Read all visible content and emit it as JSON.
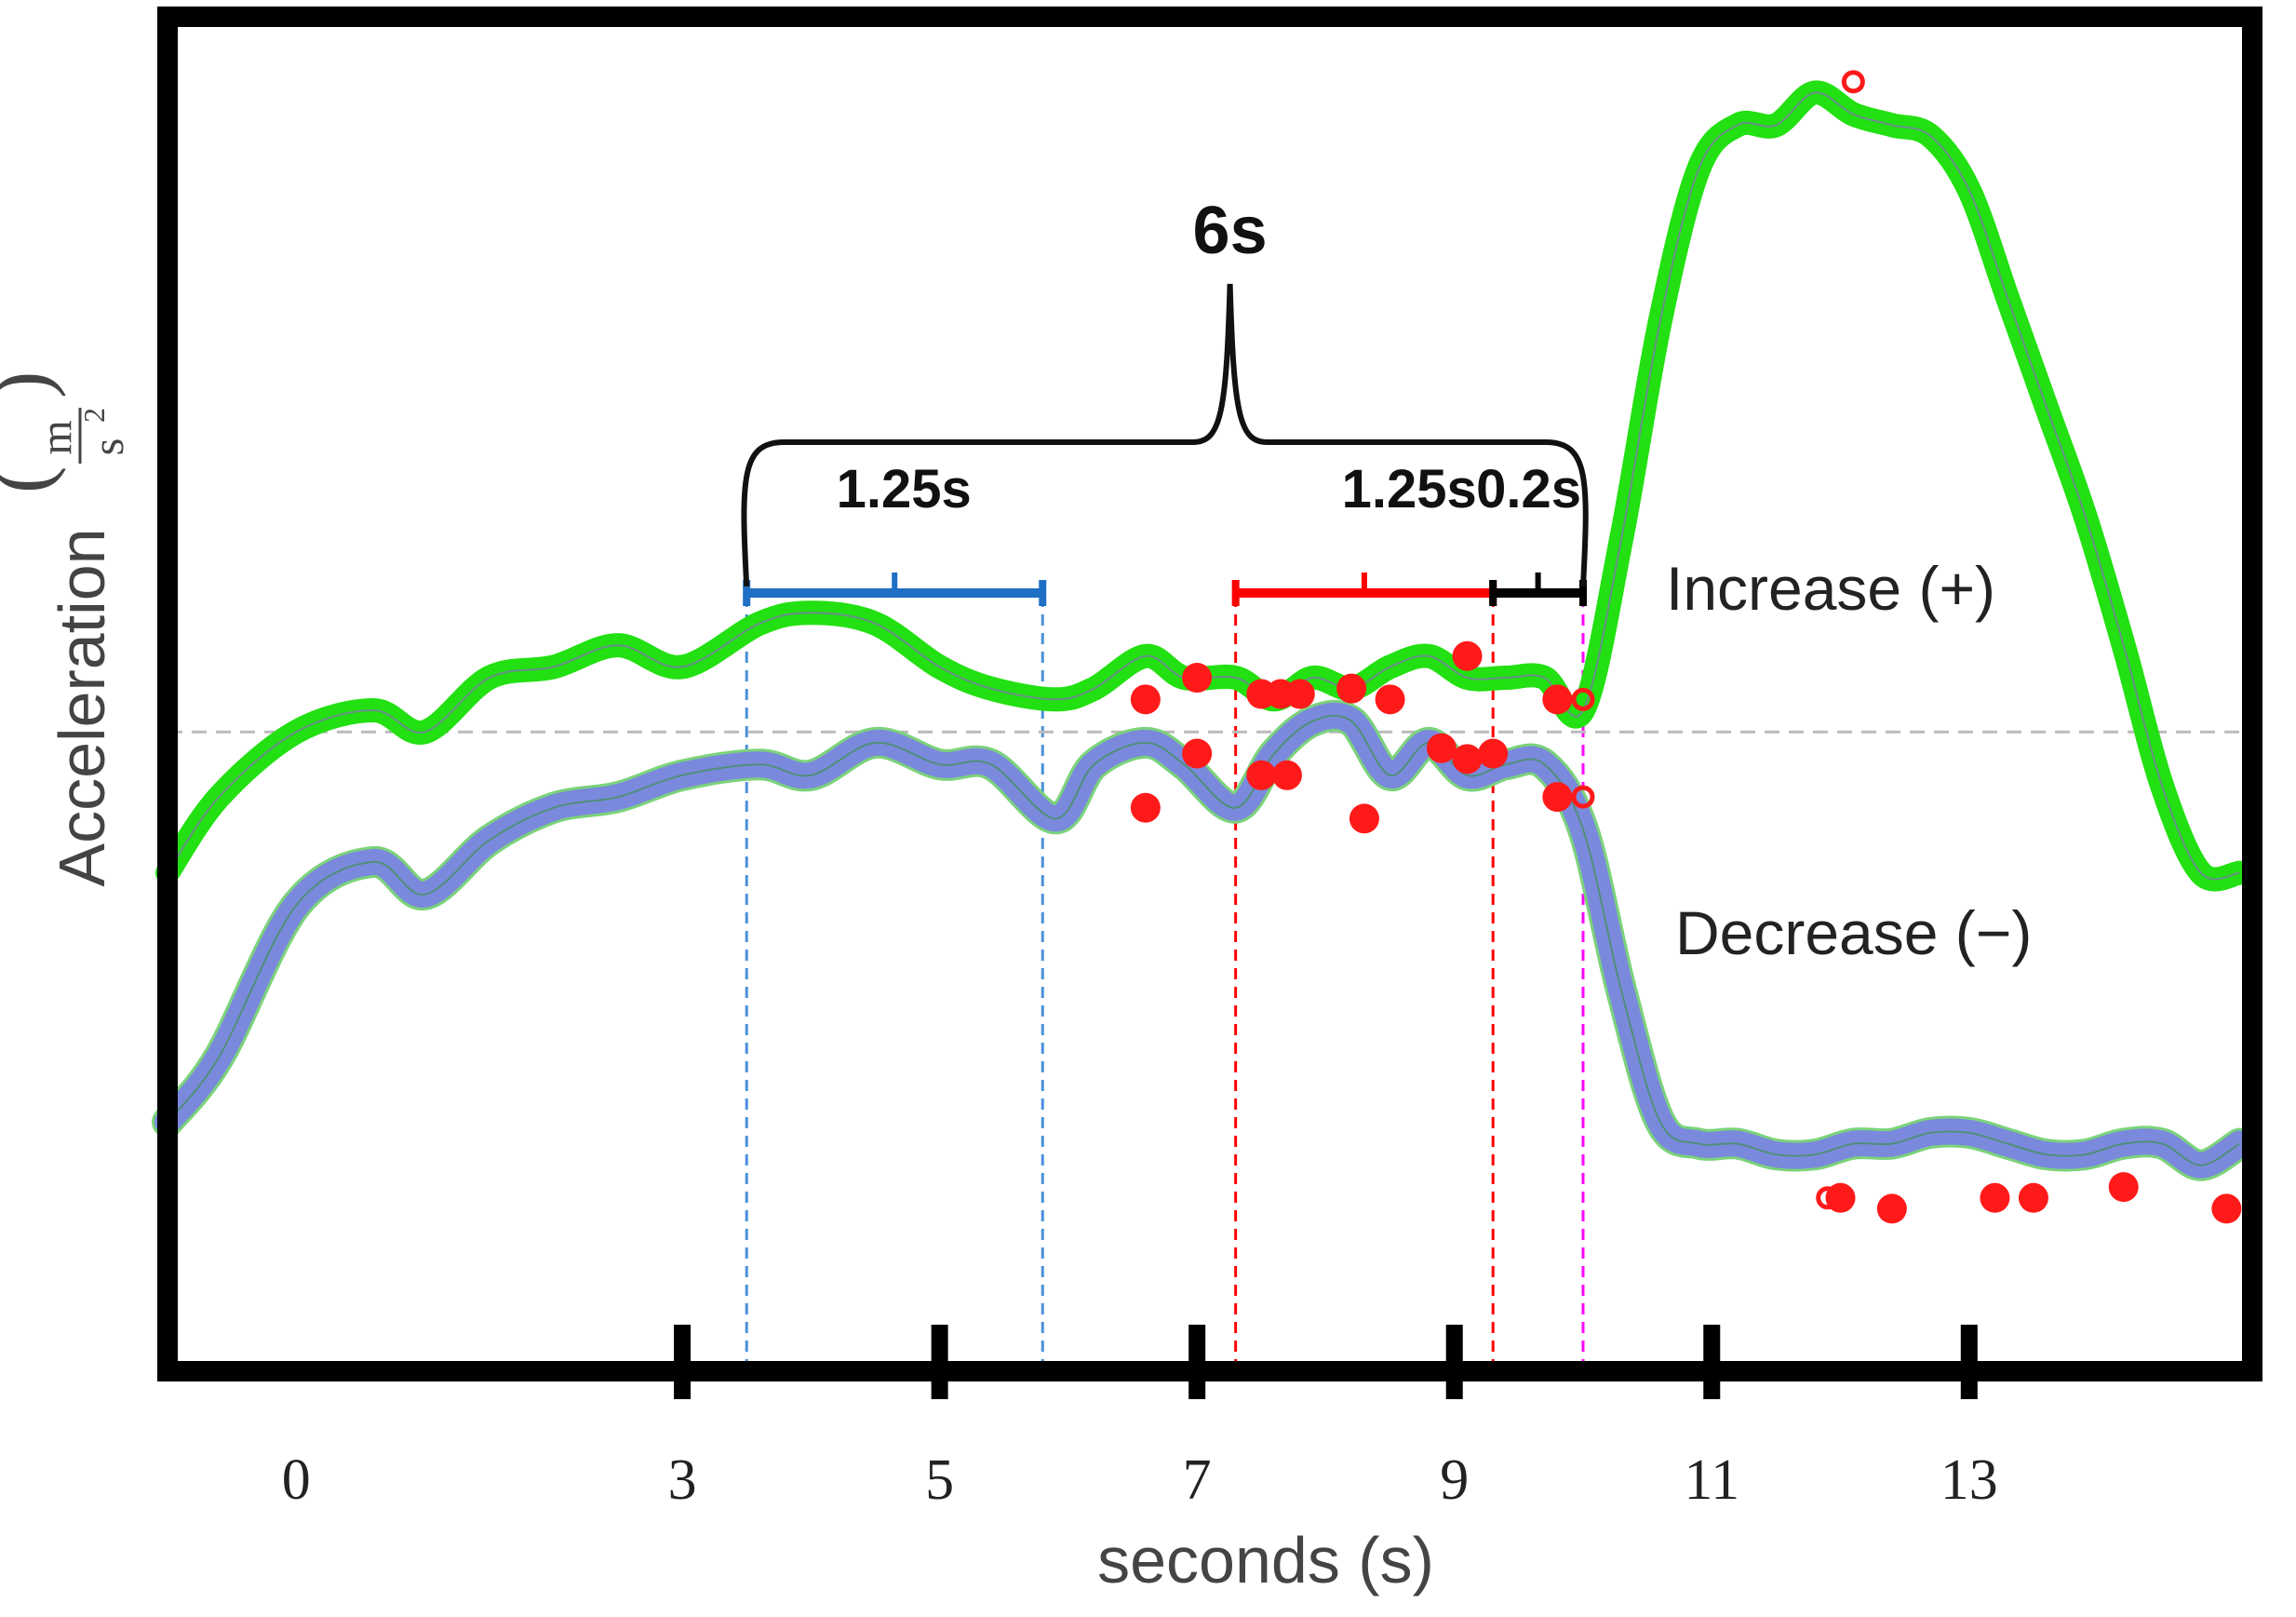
{
  "chart_data": {
    "type": "line",
    "title": "",
    "xlabel": "seconds (s)",
    "ylabel": "Acceleration",
    "ylabel_unit_num": "m",
    "ylabel_unit_den": "s",
    "ylabel_unit_exp": "2",
    "xlim": [
      -1.0,
      15.2
    ],
    "ylim": [
      -5.9,
      6.6
    ],
    "x_ticks": [
      {
        "value": 0,
        "label": "0",
        "marked": false
      },
      {
        "value": 3,
        "label": "3",
        "marked": true
      },
      {
        "value": 5,
        "label": "5",
        "marked": true
      },
      {
        "value": 7,
        "label": "7",
        "marked": true
      },
      {
        "value": 9,
        "label": "9",
        "marked": true
      },
      {
        "value": 11,
        "label": "11",
        "marked": true
      },
      {
        "value": 13,
        "label": "13",
        "marked": true
      }
    ],
    "zero_line": 0,
    "series": [
      {
        "name": "Increase (+)",
        "label": "Increase (+)",
        "color": "#22e011",
        "x": [
          -1.0,
          -0.6,
          0.0,
          0.6,
          1.0,
          1.5,
          2.0,
          2.5,
          3.0,
          3.6,
          4.0,
          4.5,
          5.0,
          5.4,
          5.9,
          6.2,
          6.6,
          6.9,
          7.3,
          7.6,
          7.9,
          8.2,
          8.5,
          8.8,
          9.1,
          9.4,
          9.7,
          10.0,
          10.3,
          10.6,
          10.9,
          11.2,
          11.5,
          11.8,
          12.1,
          12.4,
          12.7,
          13.0,
          13.3,
          13.6,
          13.9,
          14.2,
          14.5,
          14.8,
          15.1
        ],
        "y": [
          -1.3,
          -0.6,
          0.0,
          0.2,
          0.0,
          0.5,
          0.6,
          0.8,
          0.6,
          1.0,
          1.1,
          1.0,
          0.6,
          0.4,
          0.3,
          0.4,
          0.7,
          0.5,
          0.5,
          0.3,
          0.5,
          0.4,
          0.6,
          0.7,
          0.5,
          0.5,
          0.5,
          0.2,
          1.8,
          3.8,
          5.2,
          5.6,
          5.6,
          5.9,
          5.7,
          5.6,
          5.5,
          5.0,
          4.0,
          3.0,
          2.0,
          0.8,
          -0.5,
          -1.3,
          -1.3
        ],
        "markers": [
          {
            "x": 6.6,
            "y": 0.3
          },
          {
            "x": 7.0,
            "y": 0.5
          },
          {
            "x": 7.5,
            "y": 0.35
          },
          {
            "x": 7.65,
            "y": 0.35
          },
          {
            "x": 7.8,
            "y": 0.35
          },
          {
            "x": 8.2,
            "y": 0.4
          },
          {
            "x": 8.5,
            "y": 0.3
          },
          {
            "x": 9.1,
            "y": 0.7
          },
          {
            "x": 9.8,
            "y": 0.3
          }
        ],
        "hollow_markers": [
          {
            "x": 10.0,
            "y": 0.3
          },
          {
            "x": 12.1,
            "y": 6.0
          }
        ]
      },
      {
        "name": "Decrease (−)",
        "label": "Decrease (−)",
        "color": "#7b89dd",
        "x": [
          -1.0,
          -0.6,
          0.0,
          0.6,
          1.0,
          1.5,
          2.0,
          2.5,
          3.0,
          3.6,
          4.0,
          4.5,
          5.0,
          5.4,
          5.9,
          6.2,
          6.6,
          6.9,
          7.3,
          7.6,
          7.9,
          8.2,
          8.5,
          8.8,
          9.1,
          9.4,
          9.7,
          10.0,
          10.3,
          10.6,
          10.9,
          11.2,
          11.5,
          11.8,
          12.1,
          12.4,
          12.7,
          13.0,
          13.3,
          13.6,
          13.9,
          14.2,
          14.5,
          14.8,
          15.1
        ],
        "y": [
          -3.6,
          -3.0,
          -1.6,
          -1.2,
          -1.5,
          -1.0,
          -0.7,
          -0.6,
          -0.4,
          -0.3,
          -0.4,
          -0.1,
          -0.3,
          -0.3,
          -0.8,
          -0.3,
          -0.1,
          -0.3,
          -0.7,
          -0.2,
          0.1,
          0.1,
          -0.4,
          -0.1,
          -0.4,
          -0.3,
          -0.3,
          -0.9,
          -2.4,
          -3.6,
          -3.8,
          -3.8,
          -3.9,
          -3.9,
          -3.8,
          -3.8,
          -3.7,
          -3.7,
          -3.8,
          -3.9,
          -3.9,
          -3.8,
          -3.8,
          -4.0,
          -3.8
        ],
        "markers": [
          {
            "x": 6.6,
            "y": -0.7
          },
          {
            "x": 7.0,
            "y": -0.2
          },
          {
            "x": 7.5,
            "y": -0.4
          },
          {
            "x": 7.7,
            "y": -0.4
          },
          {
            "x": 8.3,
            "y": -0.8
          },
          {
            "x": 8.9,
            "y": -0.15
          },
          {
            "x": 9.1,
            "y": -0.25
          },
          {
            "x": 9.3,
            "y": -0.2
          },
          {
            "x": 9.8,
            "y": -0.6
          },
          {
            "x": 12.0,
            "y": -4.3
          },
          {
            "x": 12.4,
            "y": -4.4
          },
          {
            "x": 13.2,
            "y": -4.3
          },
          {
            "x": 13.5,
            "y": -4.3
          },
          {
            "x": 14.2,
            "y": -4.2
          },
          {
            "x": 15.0,
            "y": -4.4
          }
        ],
        "hollow_markers": [
          {
            "x": 10.0,
            "y": -0.6
          },
          {
            "x": 11.9,
            "y": -4.3
          }
        ]
      }
    ],
    "intervals": [
      {
        "label": "1.25s",
        "start": 3.5,
        "end": 5.8,
        "color": "#1f6fc5"
      },
      {
        "label": "1.25s",
        "start": 7.3,
        "end": 9.3,
        "color": "#ff0000"
      },
      {
        "label": "0.2s",
        "start": 9.3,
        "end": 10.0,
        "color": "#000000"
      }
    ],
    "guide_lines": [
      {
        "x": 3.5,
        "color": "#4a90d9"
      },
      {
        "x": 5.8,
        "color": "#4a90d9"
      },
      {
        "x": 7.3,
        "color": "#ff0000"
      },
      {
        "x": 9.3,
        "color": "#ff0000"
      },
      {
        "x": 10.0,
        "color": "#ff00ff"
      }
    ],
    "total_bracket": {
      "label": "6s",
      "start": 3.5,
      "end": 10.0
    }
  }
}
